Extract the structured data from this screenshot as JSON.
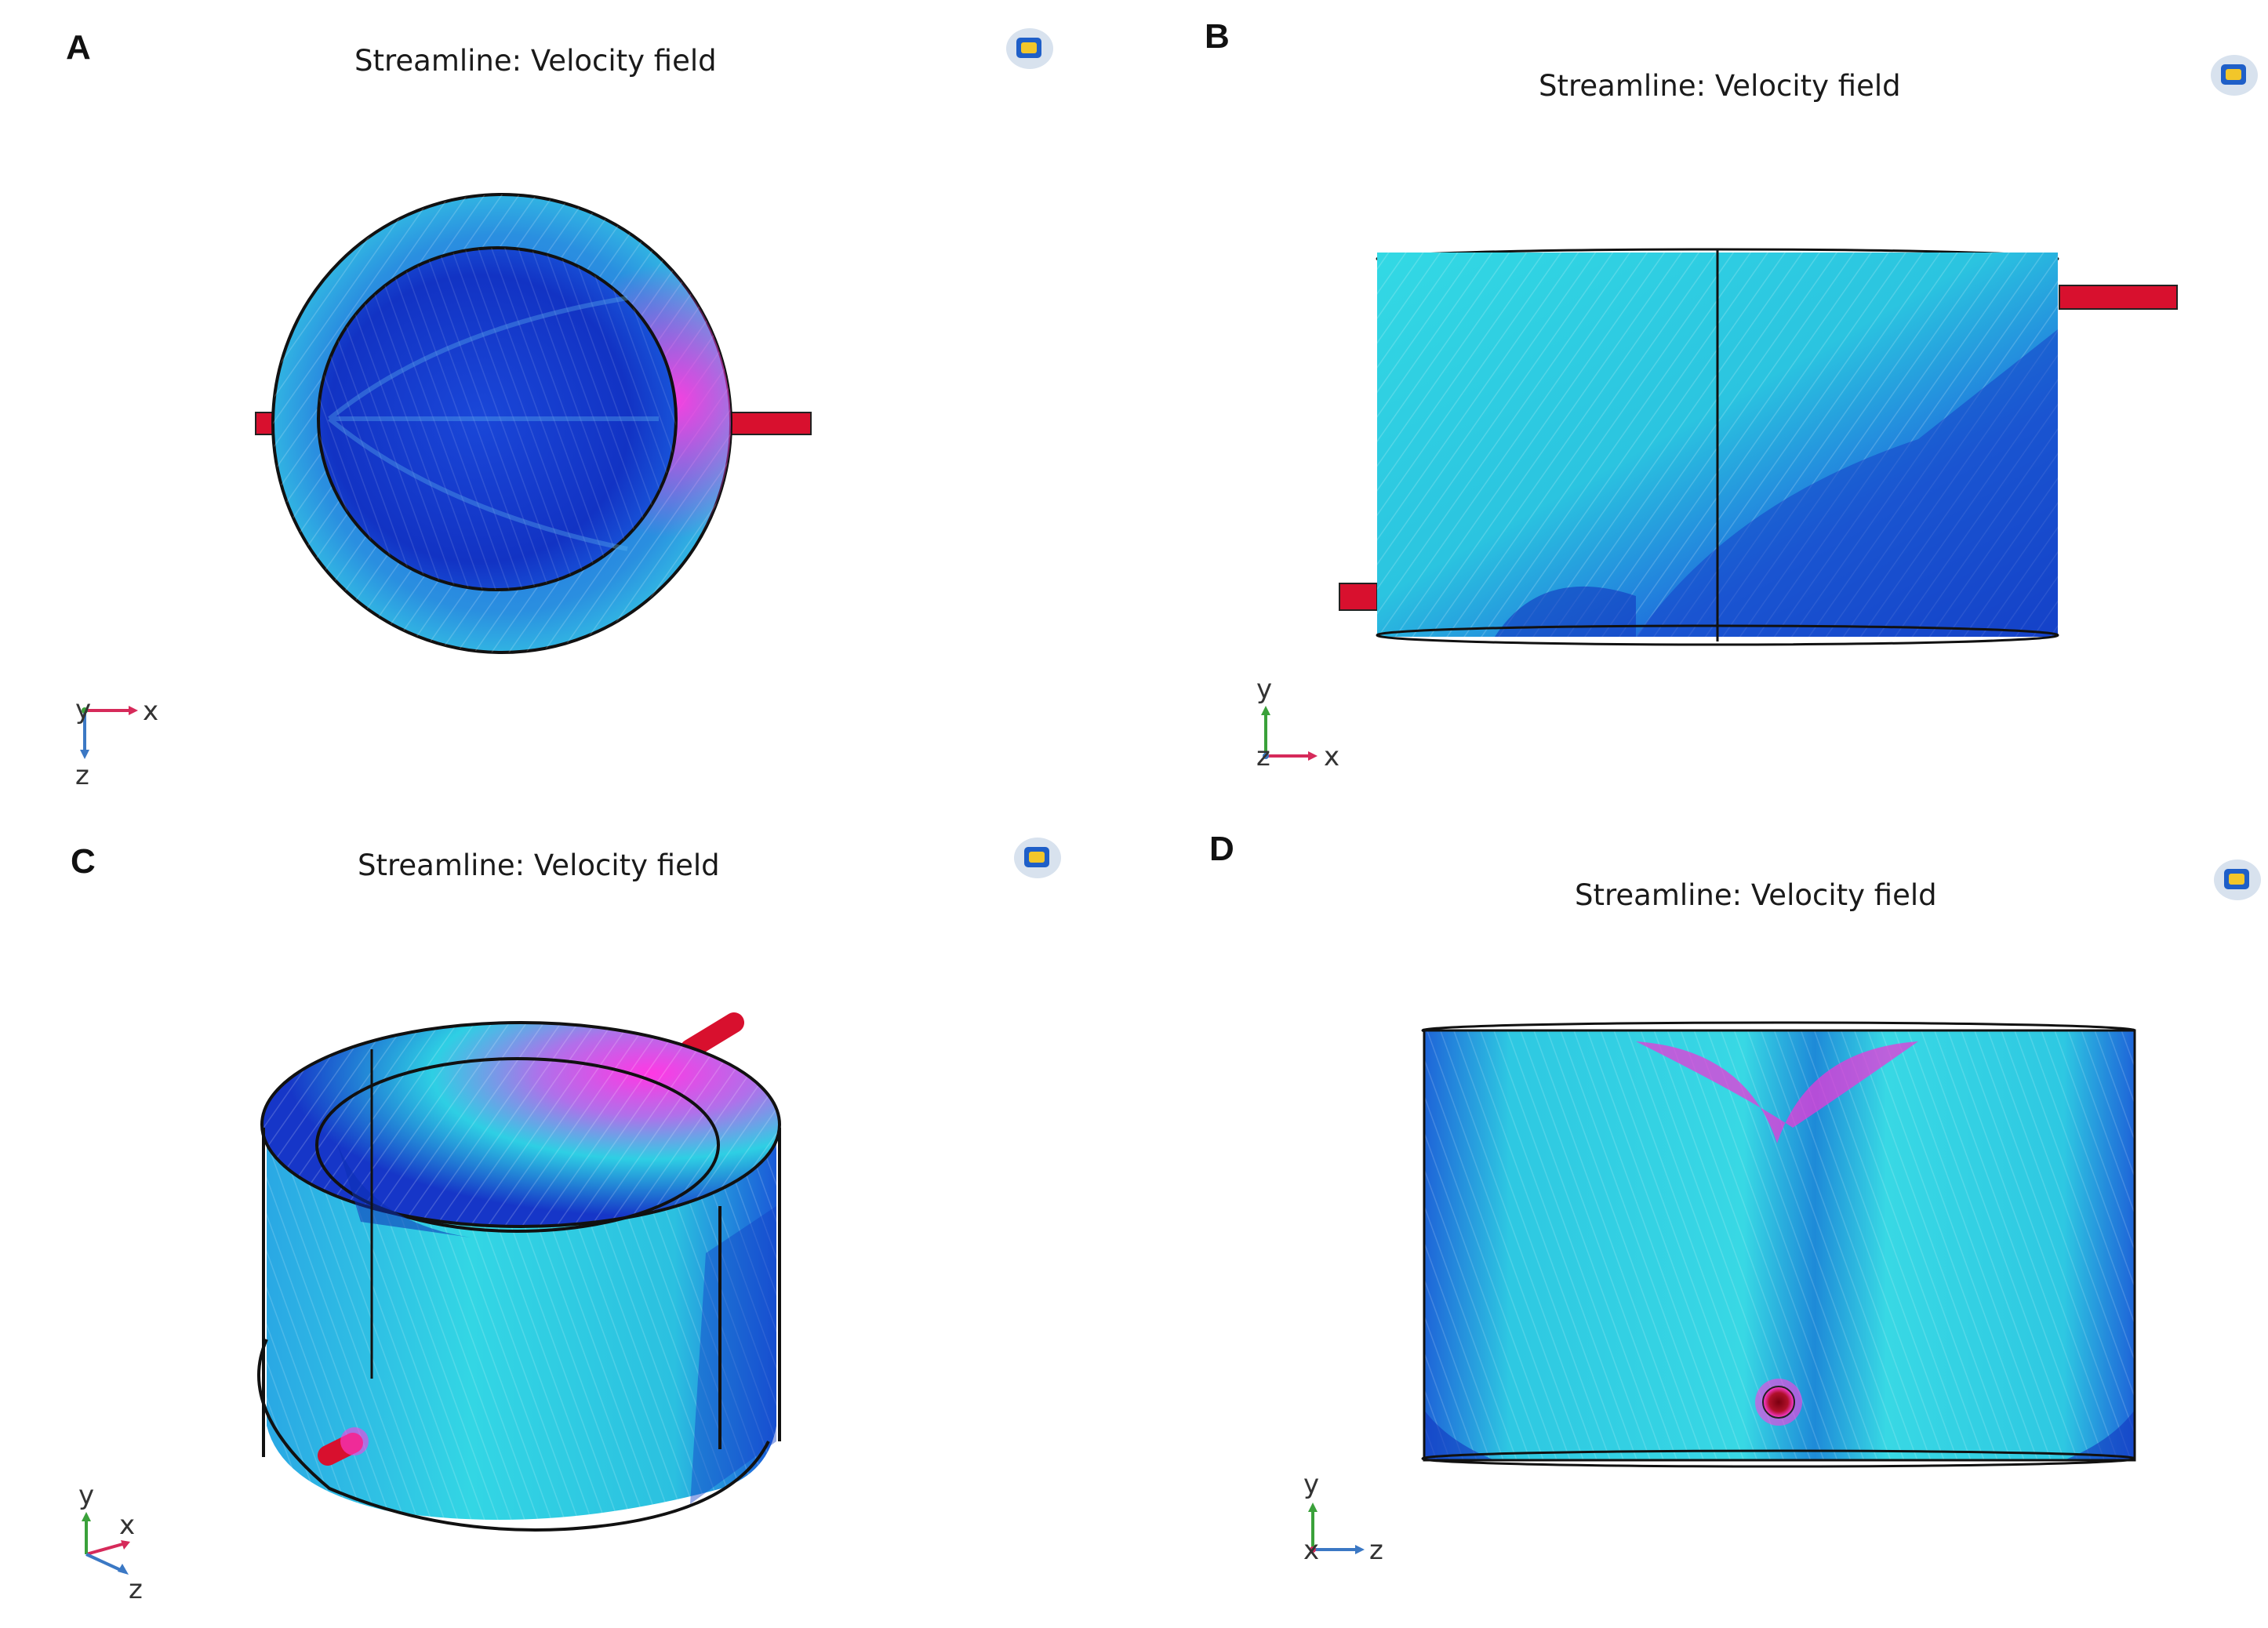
{
  "figure": {
    "panels": [
      {
        "letter": "A",
        "title": "Streamline: Velocity field",
        "axes": [
          "y",
          "x",
          "z"
        ]
      },
      {
        "letter": "B",
        "title": "Streamline: Velocity field",
        "axes": [
          "y",
          "z",
          "x"
        ]
      },
      {
        "letter": "C",
        "title": "Streamline: Velocity field",
        "axes": [
          "y",
          "x",
          "z"
        ]
      },
      {
        "letter": "D",
        "title": "Streamline: Velocity field",
        "axes": [
          "y",
          "x",
          "z"
        ]
      }
    ]
  },
  "colors": {
    "cyan": "#2fd3e0",
    "blue": "#1f4fd8",
    "deep_blue": "#0b2fb8",
    "magenta": "#e23ad8",
    "pipe_red": "#d8102e",
    "outline": "#111111",
    "axis_x": "#d62a5a",
    "axis_y": "#3aa13a",
    "axis_z": "#3b78c4"
  },
  "icons": {
    "logo": "comsol-logo-icon"
  }
}
